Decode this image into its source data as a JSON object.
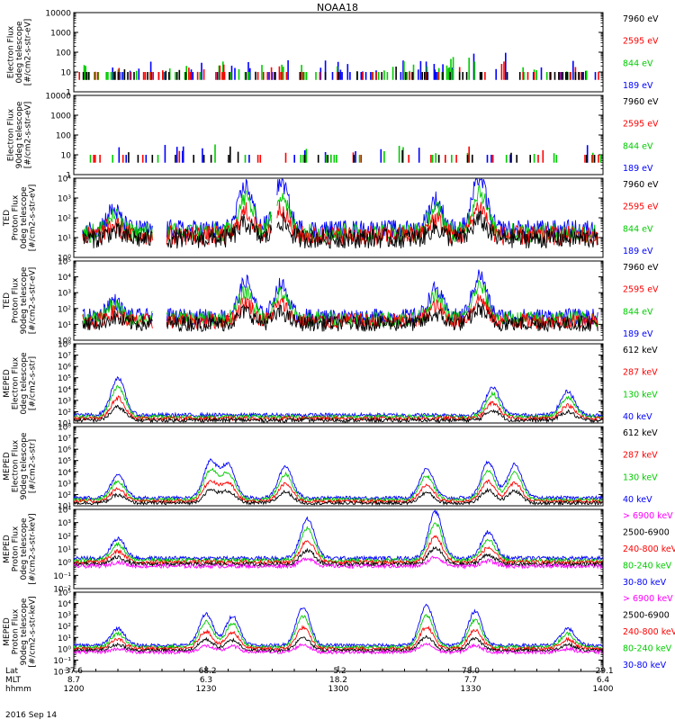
{
  "figure": {
    "title": "NOAA18",
    "date_label": "2016 Sep 14"
  },
  "chart_data": {
    "type": "line",
    "title": "NOAA18",
    "x_axis": {
      "row_labels": [
        "Lat",
        "MLT",
        "hhmm"
      ],
      "ticks": [
        {
          "hhmm": "1200",
          "lat": "37.6",
          "mlt": "8.7"
        },
        {
          "hhmm": "1230",
          "lat": "-68.2",
          "mlt": "6.3"
        },
        {
          "hhmm": "1300",
          "lat": "-5.2",
          "mlt": "18.2"
        },
        {
          "hhmm": "1330",
          "lat": "78.0",
          "mlt": "7.7"
        },
        {
          "hhmm": "1400",
          "lat": "-29.1",
          "mlt": "6.4"
        }
      ],
      "range_minutes": [
        0,
        120
      ]
    },
    "panels": [
      {
        "ylabel": [
          "Electron Flux",
          "0deg telescope",
          "[#/cm2-s-str-eV]"
        ],
        "ylim": [
          1,
          10000
        ],
        "log": true,
        "tick_style": "plain",
        "yticks": [
          "1",
          "10",
          "100",
          "1000",
          "10000"
        ],
        "series": [
          {
            "name": "7960 eV",
            "color": "#000000"
          },
          {
            "name": "2595 eV",
            "color": "#ff0000"
          },
          {
            "name": "844 eV",
            "color": "#00cc00"
          },
          {
            "name": "189 eV",
            "color": "#0000ff"
          }
        ],
        "peaks": [
          [
            35,
            0.5
          ],
          [
            60,
            0.4
          ],
          [
            73,
            0.5
          ],
          [
            87,
            0.5
          ],
          [
            89,
            0.4
          ],
          [
            92,
            0.3
          ],
          [
            97,
            0.5
          ]
        ],
        "extent": [
          0,
          120
        ],
        "base": 1,
        "noise": 1.2,
        "order": [
          3,
          2,
          1,
          0
        ],
        "sparse": true,
        "sparseDensity": 0.1
      },
      {
        "ylabel": [
          "Electron Flux",
          "90deg telescope",
          "[#/cm2-s-str-eV]"
        ],
        "ylim": [
          1,
          10000
        ],
        "log": true,
        "tick_style": "plain",
        "yticks": [
          "1",
          "10",
          "100",
          "1000",
          "10000"
        ],
        "series": [
          {
            "name": "7960 eV",
            "color": "#000000"
          },
          {
            "name": "2595 eV",
            "color": "#ff0000"
          },
          {
            "name": "844 eV",
            "color": "#00cc00"
          },
          {
            "name": "189 eV",
            "color": "#0000ff"
          }
        ],
        "peaks": [
          [
            35,
            1.0
          ],
          [
            73,
            0.8
          ],
          [
            88,
            0.5
          ]
        ],
        "extent": [
          0,
          120
        ],
        "base": 1,
        "noise": 1.2,
        "order": [
          3,
          2,
          1,
          0
        ],
        "sparse": true,
        "sparseDensity": 0.04
      },
      {
        "ylabel": [
          "TED",
          "Proton Flux",
          "0deg telescope",
          "[#/cm2-s-str-eV]"
        ],
        "ylim": [
          1,
          10000
        ],
        "log": true,
        "tick_style": "exp",
        "yticks": [
          "10⁰",
          "10¹",
          "10²",
          "10³",
          "10⁴"
        ],
        "series": [
          {
            "name": "7960 eV",
            "color": "#000000"
          },
          {
            "name": "2595 eV",
            "color": "#ff0000"
          },
          {
            "name": "844 eV",
            "color": "#00cc00"
          },
          {
            "name": "189 eV",
            "color": "#0000ff"
          }
        ],
        "peaks": [
          [
            9,
            1.0
          ],
          [
            39,
            2.2
          ],
          [
            47,
            2.5
          ],
          [
            82,
            1.5
          ],
          [
            92,
            2.7
          ]
        ],
        "extent": [
          2,
          119
        ],
        "base": 1.4,
        "noise": 1.0,
        "order": [
          3,
          2,
          1,
          0
        ],
        "sparse": false,
        "gaps": [
          [
            18,
            21
          ],
          [
            45,
            46
          ]
        ]
      },
      {
        "ylabel": [
          "TED",
          "Proton Flux",
          "90deg telescope",
          "[#/cm2-s-str-eV]"
        ],
        "ylim": [
          1,
          100000
        ],
        "log": true,
        "tick_style": "exp",
        "yticks": [
          "10⁰",
          "10¹",
          "10²",
          "10³",
          "10⁴",
          "10⁵"
        ],
        "series": [
          {
            "name": "7960 eV",
            "color": "#000000"
          },
          {
            "name": "2595 eV",
            "color": "#ff0000"
          },
          {
            "name": "844 eV",
            "color": "#00cc00"
          },
          {
            "name": "189 eV",
            "color": "#0000ff"
          }
        ],
        "peaks": [
          [
            9,
            1.0
          ],
          [
            39,
            2.2
          ],
          [
            47,
            2.0
          ],
          [
            82,
            1.7
          ],
          [
            92,
            2.6
          ]
        ],
        "extent": [
          2,
          119
        ],
        "base": 1.5,
        "noise": 1.0,
        "order": [
          3,
          2,
          1,
          0
        ],
        "sparse": false,
        "gaps": [
          [
            18,
            21
          ]
        ]
      },
      {
        "ylabel": [
          "MEPED",
          "Electron Flux",
          "0deg telescope",
          "[#/cm2-s-str]"
        ],
        "ylim": [
          10,
          100000000
        ],
        "log": true,
        "tick_style": "exp",
        "yticks": [
          "10¹",
          "10²",
          "10³",
          "10⁴",
          "10⁵",
          "10⁶",
          "10⁷",
          "10⁸"
        ],
        "series": [
          {
            "name": "612 keV",
            "color": "#000000"
          },
          {
            "name": "287 keV",
            "color": "#ff0000"
          },
          {
            "name": "130 keV",
            "color": "#00cc00"
          },
          {
            "name": "40 keV",
            "color": "#0000ff"
          }
        ],
        "peaks": [
          [
            10,
            3.3
          ],
          [
            95,
            2.5
          ],
          [
            112,
            2.1
          ]
        ],
        "extent": [
          0,
          120
        ],
        "base": 1.7,
        "noise": 0.35,
        "order": [
          3,
          2,
          1,
          0
        ],
        "sparse": false
      },
      {
        "ylabel": [
          "MEPED",
          "Electron Flux",
          "90deg telescope",
          "[#/cm2-s-str]"
        ],
        "ylim": [
          10,
          100000000
        ],
        "log": true,
        "tick_style": "exp",
        "yticks": [
          "10¹",
          "10²",
          "10³",
          "10⁴",
          "10⁵",
          "10⁶",
          "10⁷",
          "10⁸"
        ],
        "series": [
          {
            "name": "612 keV",
            "color": "#000000"
          },
          {
            "name": "287 keV",
            "color": "#ff0000"
          },
          {
            "name": "130 keV",
            "color": "#00cc00"
          },
          {
            "name": "40 keV",
            "color": "#0000ff"
          }
        ],
        "peaks": [
          [
            10,
            2.0
          ],
          [
            31,
            3.2
          ],
          [
            35,
            2.9
          ],
          [
            48,
            2.8
          ],
          [
            80,
            2.6
          ],
          [
            94,
            3.2
          ],
          [
            100,
            3.0
          ]
        ],
        "extent": [
          0,
          120
        ],
        "base": 1.7,
        "noise": 0.3,
        "order": [
          3,
          2,
          1,
          0
        ],
        "sparse": false
      },
      {
        "ylabel": [
          "MEPED",
          "Proton Flux",
          "0deg telescope",
          "[#/cm2-s-str-keV]"
        ],
        "ylim": [
          0.01,
          10000
        ],
        "log": true,
        "tick_style": "exp",
        "yticks": [
          "10⁻²",
          "10⁻¹",
          "10⁰",
          "10¹",
          "10²",
          "10³",
          "10⁴"
        ],
        "series": [
          {
            "name": "> 6900 keV",
            "color": "#ff00ff"
          },
          {
            "name": "2500-6900",
            "color": "#000000"
          },
          {
            "name": "240-800 keV",
            "color": "#ff0000"
          },
          {
            "name": "80-240 keV",
            "color": "#00cc00"
          },
          {
            "name": "30-80 keV",
            "color": "#0000ff"
          }
        ],
        "peaks": [
          [
            10,
            1.5
          ],
          [
            53,
            3.0
          ],
          [
            82,
            3.5
          ],
          [
            94,
            2.0
          ]
        ],
        "extent": [
          0,
          120
        ],
        "base": 0.3,
        "noise": 0.3,
        "order": [
          4,
          3,
          2,
          1,
          0
        ],
        "sparse": false
      },
      {
        "ylabel": [
          "MEPED",
          "Proton Flux",
          "90deg telescope",
          "[#/cm2-s-str-keV]"
        ],
        "ylim": [
          0.01,
          100000
        ],
        "log": true,
        "tick_style": "exp",
        "yticks": [
          "10⁻²",
          "10⁻¹",
          "10⁰",
          "10¹",
          "10²",
          "10³",
          "10⁴",
          "10⁵"
        ],
        "series": [
          {
            "name": "> 6900 keV",
            "color": "#ff00ff"
          },
          {
            "name": "2500-6900",
            "color": "#000000"
          },
          {
            "name": "240-800 keV",
            "color": "#ff0000"
          },
          {
            "name": "80-240 keV",
            "color": "#00cc00"
          },
          {
            "name": "30-80 keV",
            "color": "#0000ff"
          }
        ],
        "peaks": [
          [
            10,
            1.5
          ],
          [
            30,
            2.8
          ],
          [
            36,
            2.6
          ],
          [
            52,
            3.4
          ],
          [
            80,
            3.5
          ],
          [
            91,
            3.0
          ],
          [
            112,
            1.5
          ]
        ],
        "extent": [
          0,
          120
        ],
        "base": 0.3,
        "noise": 0.3,
        "order": [
          4,
          3,
          2,
          1,
          0
        ],
        "sparse": false
      }
    ]
  }
}
